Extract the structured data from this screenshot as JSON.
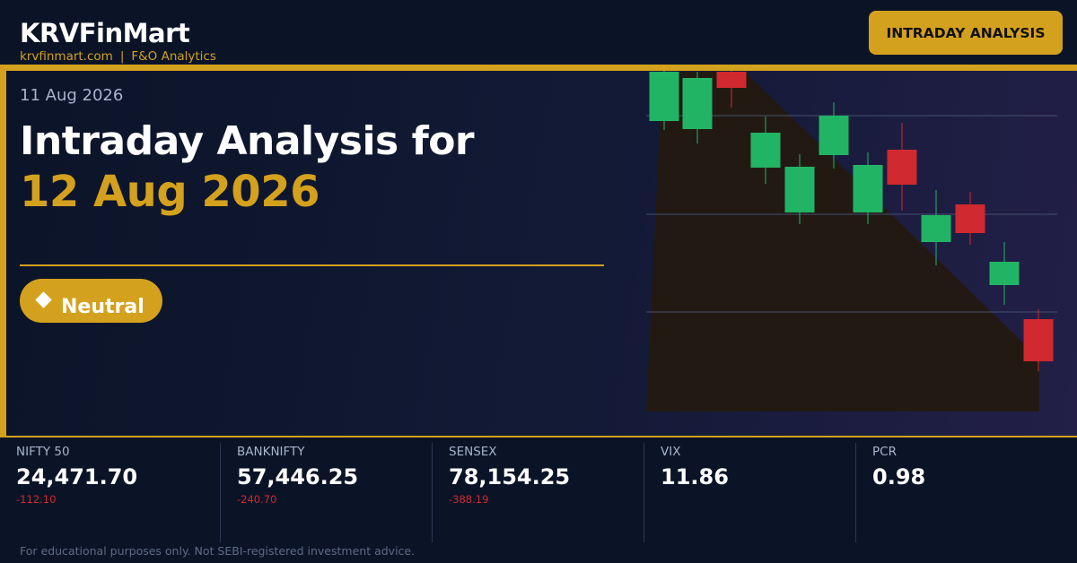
{
  "header": {
    "brand": "KRVFinMart",
    "domain": "krvfinmart.com",
    "separator": "|",
    "tagline": "F&O Analytics",
    "badge": "INTRADAY ANALYSIS"
  },
  "hero": {
    "date": "11 Aug 2026",
    "title": "Intraday Analysis for",
    "highlight": "12 Aug 2026",
    "sentiment": "Neutral"
  },
  "stats": [
    {
      "name": "NIFTY 50",
      "value": "24,471.70",
      "change": "-112.10"
    },
    {
      "name": "BANKNIFTY",
      "value": "57,446.25",
      "change": "-240.70"
    },
    {
      "name": "SENSEX",
      "value": "78,154.25",
      "change": "-388.19"
    },
    {
      "name": "VIX",
      "value": "11.86"
    },
    {
      "name": "PCR",
      "value": "0.98"
    }
  ],
  "footer": {
    "disclaimer": "For educational purposes only. Not SEBI-registered investment advice."
  }
}
